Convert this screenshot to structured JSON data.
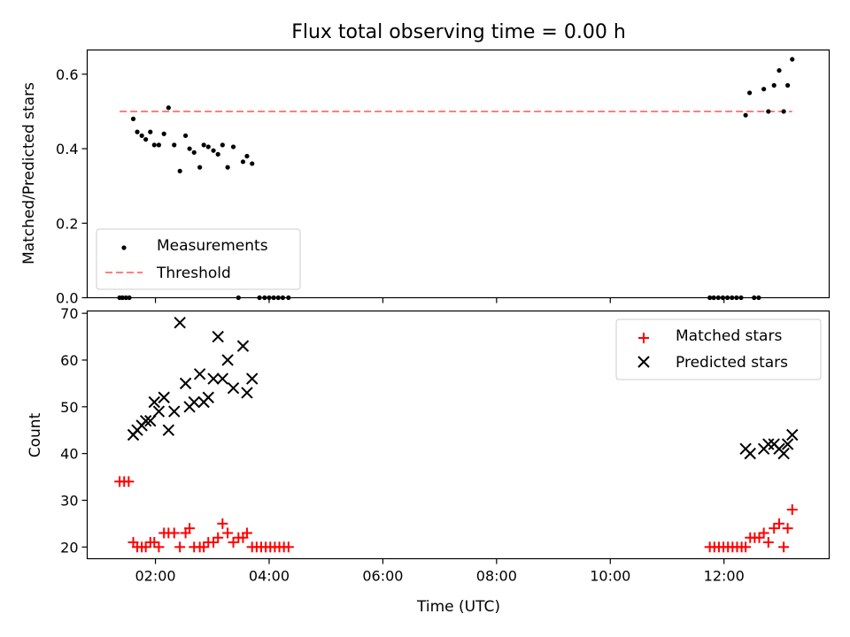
{
  "chart_data": [
    {
      "type": "scatter",
      "title": "Flux total observing time = 0.00 h",
      "xlabel": "",
      "ylabel": "Matched/Predicted stars",
      "xlim": [
        0.8,
        13.85
      ],
      "ylim": [
        0.0,
        0.665
      ],
      "x_unit": "hours UTC",
      "yticks": [
        {
          "value": 0.0,
          "label": "0.0"
        },
        {
          "value": 0.2,
          "label": "0.2"
        },
        {
          "value": 0.4,
          "label": "0.4"
        },
        {
          "value": 0.6,
          "label": "0.6"
        }
      ],
      "xticks": [
        2,
        4,
        6,
        8,
        10,
        12
      ],
      "grid": false,
      "legend": {
        "position": "lower-left",
        "entries": [
          "Measurements",
          "Threshold"
        ]
      },
      "threshold": {
        "name": "Threshold",
        "value": 0.5,
        "x_range": [
          1.37,
          13.2
        ],
        "color": "#ff7f7f"
      },
      "series": [
        {
          "name": "Measurements",
          "color": "#000000",
          "x": [
            1.37,
            1.42,
            1.48,
            1.54,
            1.61,
            1.68,
            1.76,
            1.83,
            1.91,
            1.98,
            2.06,
            2.15,
            2.23,
            2.33,
            2.43,
            2.53,
            2.6,
            2.68,
            2.78,
            2.85,
            2.93,
            3.02,
            3.1,
            3.18,
            3.27,
            3.37,
            3.46,
            3.54,
            3.61,
            3.7,
            3.83,
            3.92,
            4.0,
            4.08,
            4.16,
            4.24,
            4.34,
            11.75,
            11.82,
            11.9,
            11.98,
            12.06,
            12.14,
            12.22,
            12.3,
            12.38,
            12.45,
            12.53,
            12.61,
            12.7,
            12.78,
            12.88,
            12.97,
            13.05,
            13.12,
            13.2
          ],
          "y": [
            0.0,
            0.0,
            0.0,
            0.0,
            0.48,
            0.445,
            0.435,
            0.425,
            0.445,
            0.41,
            0.41,
            0.44,
            0.51,
            0.41,
            0.34,
            0.435,
            0.4,
            0.39,
            0.35,
            0.41,
            0.405,
            0.395,
            0.385,
            0.41,
            0.35,
            0.405,
            0.0,
            0.365,
            0.38,
            0.36,
            0.0,
            0.0,
            0.0,
            0.0,
            0.0,
            0.0,
            0.0,
            0.0,
            0.0,
            0.0,
            0.0,
            0.0,
            0.0,
            0.0,
            0.0,
            0.49,
            0.55,
            0.0,
            0.0,
            0.56,
            0.5,
            0.57,
            0.61,
            0.5,
            0.57,
            0.64
          ]
        }
      ]
    },
    {
      "type": "scatter",
      "title": "",
      "xlabel": "Time (UTC)",
      "ylabel": "Count",
      "xlim": [
        0.8,
        13.85
      ],
      "ylim": [
        17.5,
        70.5
      ],
      "x_unit": "hours UTC",
      "yticks": [
        {
          "value": 20,
          "label": "20"
        },
        {
          "value": 30,
          "label": "30"
        },
        {
          "value": 40,
          "label": "40"
        },
        {
          "value": 50,
          "label": "50"
        },
        {
          "value": 60,
          "label": "60"
        },
        {
          "value": 70,
          "label": "70"
        }
      ],
      "xticks": [
        {
          "value": 2,
          "label": "02:00"
        },
        {
          "value": 4,
          "label": "04:00"
        },
        {
          "value": 6,
          "label": "06:00"
        },
        {
          "value": 8,
          "label": "08:00"
        },
        {
          "value": 10,
          "label": "10:00"
        },
        {
          "value": 12,
          "label": "12:00"
        }
      ],
      "grid": false,
      "legend": {
        "position": "top-right",
        "entries": [
          "Matched stars",
          "Predicted stars"
        ]
      },
      "series": [
        {
          "name": "Matched stars",
          "marker": "plus",
          "color": "#ff0000",
          "x": [
            1.37,
            1.45,
            1.53,
            1.61,
            1.68,
            1.76,
            1.83,
            1.91,
            1.98,
            2.06,
            2.15,
            2.23,
            2.33,
            2.43,
            2.53,
            2.6,
            2.68,
            2.78,
            2.85,
            2.93,
            3.02,
            3.1,
            3.18,
            3.27,
            3.37,
            3.46,
            3.54,
            3.61,
            3.7,
            3.78,
            3.86,
            3.94,
            4.02,
            4.1,
            4.18,
            4.26,
            4.34,
            11.75,
            11.83,
            11.91,
            11.99,
            12.07,
            12.15,
            12.23,
            12.31,
            12.38,
            12.46,
            12.54,
            12.62,
            12.7,
            12.78,
            12.88,
            12.97,
            13.05,
            13.12,
            13.2
          ],
          "y": [
            34,
            34,
            34,
            21,
            20,
            20,
            20,
            21,
            21,
            20,
            23,
            23,
            23,
            20,
            23,
            24,
            20,
            20,
            20,
            21,
            21,
            22,
            25,
            23,
            21,
            22,
            22,
            23,
            20,
            20,
            20,
            20,
            20,
            20,
            20,
            20,
            20,
            20,
            20,
            20,
            20,
            20,
            20,
            20,
            20,
            20,
            22,
            22,
            22,
            23,
            21,
            24,
            25,
            20,
            24,
            28
          ]
        },
        {
          "name": "Predicted stars",
          "marker": "x",
          "color": "#000000",
          "x": [
            1.61,
            1.68,
            1.76,
            1.83,
            1.91,
            1.98,
            2.06,
            2.15,
            2.23,
            2.33,
            2.43,
            2.53,
            2.6,
            2.68,
            2.78,
            2.85,
            2.93,
            3.02,
            3.1,
            3.18,
            3.27,
            3.37,
            3.54,
            3.61,
            3.7,
            12.38,
            12.46,
            12.7,
            12.78,
            12.88,
            12.97,
            13.05,
            13.12,
            13.2
          ],
          "y": [
            44,
            45,
            46,
            47,
            47,
            51,
            49,
            52,
            45,
            49,
            68,
            55,
            50,
            51,
            57,
            51,
            52,
            56,
            65,
            56,
            60,
            54,
            63,
            53,
            56,
            41,
            40,
            41,
            42,
            42,
            41,
            40,
            42,
            44
          ]
        }
      ]
    }
  ]
}
